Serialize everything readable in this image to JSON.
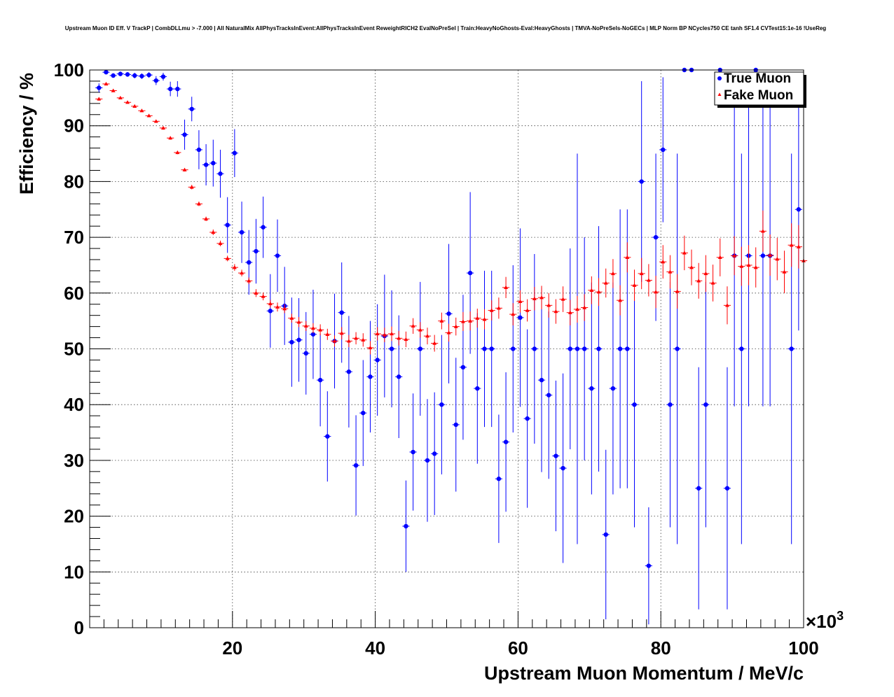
{
  "chart_data": {
    "type": "scatter",
    "title": "Upstream Muon ID Eff. V TrackP | CombDLLmu > -7.000 | All NaturalMix AllPhysTracksInEvent:AllPhysTracksInEvent ReweightRICH2 EvalNoPreSel | Train:HeavyNoGhosts-Eval:HeavyGhosts | TMVA-NoPreSels-NoGECs | MLP Norm BP NCycles750 CE tanh SF1.4 CVTest15:1e-16 !UseReg",
    "xlabel": "Upstream Muon Momentum / MeV/c",
    "ylabel": "Efficiency / %",
    "x_multiplier": "×10",
    "x_multiplier_exp": "3",
    "xlim": [
      0,
      100
    ],
    "ylim": [
      0,
      100
    ],
    "x_ticks": [
      20,
      40,
      60,
      80,
      100
    ],
    "y_ticks": [
      0,
      10,
      20,
      30,
      40,
      50,
      60,
      70,
      80,
      90,
      100
    ],
    "grid": true,
    "legend_position": "top-right",
    "series": [
      {
        "name": "True Muon",
        "color": "#0000ff",
        "marker": "circle",
        "points": [
          {
            "x": 1.3,
            "y": 96.8,
            "err": 0.8
          },
          {
            "x": 2.3,
            "y": 99.6,
            "err": 0.3
          },
          {
            "x": 3.3,
            "y": 99.0,
            "err": 0.4
          },
          {
            "x": 4.3,
            "y": 99.3,
            "err": 0.4
          },
          {
            "x": 5.3,
            "y": 99.2,
            "err": 0.4
          },
          {
            "x": 6.3,
            "y": 99.0,
            "err": 0.5
          },
          {
            "x": 7.3,
            "y": 98.9,
            "err": 0.5
          },
          {
            "x": 8.3,
            "y": 99.1,
            "err": 0.5
          },
          {
            "x": 9.3,
            "y": 98.1,
            "err": 0.8
          },
          {
            "x": 10.3,
            "y": 98.8,
            "err": 0.7
          },
          {
            "x": 11.3,
            "y": 96.6,
            "err": 1.3
          },
          {
            "x": 12.3,
            "y": 96.6,
            "err": 1.4
          },
          {
            "x": 13.3,
            "y": 88.4,
            "err": 2.7
          },
          {
            "x": 14.3,
            "y": 93.0,
            "err": 2.2
          },
          {
            "x": 15.3,
            "y": 85.7,
            "err": 3.5
          },
          {
            "x": 16.3,
            "y": 83.0,
            "err": 3.7
          },
          {
            "x": 17.3,
            "y": 83.3,
            "err": 4.2
          },
          {
            "x": 18.3,
            "y": 81.4,
            "err": 4.3
          },
          {
            "x": 19.3,
            "y": 72.2,
            "err": 5.0
          },
          {
            "x": 20.3,
            "y": 85.1,
            "err": 4.3
          },
          {
            "x": 21.3,
            "y": 70.9,
            "err": 5.5
          },
          {
            "x": 22.3,
            "y": 65.5,
            "err": 5.8
          },
          {
            "x": 23.3,
            "y": 67.5,
            "err": 5.8
          },
          {
            "x": 24.3,
            "y": 71.8,
            "err": 5.5
          },
          {
            "x": 25.3,
            "y": 56.8,
            "err": 6.6
          },
          {
            "x": 26.3,
            "y": 66.7,
            "err": 6.5
          },
          {
            "x": 27.3,
            "y": 57.7,
            "err": 7.0
          },
          {
            "x": 28.3,
            "y": 51.2,
            "err": 8.0
          },
          {
            "x": 29.3,
            "y": 51.6,
            "err": 7.5
          },
          {
            "x": 30.3,
            "y": 49.2,
            "err": 7.4
          },
          {
            "x": 31.3,
            "y": 52.6,
            "err": 8.0
          },
          {
            "x": 32.3,
            "y": 44.4,
            "err": 8.3
          },
          {
            "x": 33.3,
            "y": 34.3,
            "err": 8.1
          },
          {
            "x": 34.3,
            "y": 51.4,
            "err": 8.5
          },
          {
            "x": 35.3,
            "y": 56.5,
            "err": 9.0
          },
          {
            "x": 36.3,
            "y": 45.9,
            "err": 10.0
          },
          {
            "x": 37.3,
            "y": 29.1,
            "err": 9.0
          },
          {
            "x": 38.3,
            "y": 38.5,
            "err": 9.5
          },
          {
            "x": 39.3,
            "y": 45.0,
            "err": 10.0
          },
          {
            "x": 40.3,
            "y": 48.0,
            "err": 10.0
          },
          {
            "x": 41.3,
            "y": 52.3,
            "err": 11.0
          },
          {
            "x": 42.3,
            "y": 50.0,
            "err": 10.5
          },
          {
            "x": 43.3,
            "y": 45.0,
            "err": 11.0
          },
          {
            "x": 44.3,
            "y": 18.2,
            "err": 8.2
          },
          {
            "x": 45.3,
            "y": 31.5,
            "err": 10.5
          },
          {
            "x": 46.3,
            "y": 50.0,
            "err": 12.0
          },
          {
            "x": 47.3,
            "y": 30.0,
            "err": 11.0
          },
          {
            "x": 48.3,
            "y": 31.2,
            "err": 11.0
          },
          {
            "x": 49.3,
            "y": 40.0,
            "err": 12.5
          },
          {
            "x": 50.3,
            "y": 56.3,
            "err": 12.5
          },
          {
            "x": 51.3,
            "y": 36.4,
            "err": 12.0
          },
          {
            "x": 52.3,
            "y": 46.7,
            "err": 13.0
          },
          {
            "x": 53.3,
            "y": 63.6,
            "err": 14.5
          },
          {
            "x": 54.3,
            "y": 42.9,
            "err": 13.5
          },
          {
            "x": 55.3,
            "y": 50.0,
            "err": 14.0
          },
          {
            "x": 56.3,
            "y": 50.0,
            "err": 14.0
          },
          {
            "x": 57.3,
            "y": 26.7,
            "err": 11.5
          },
          {
            "x": 58.3,
            "y": 33.3,
            "err": 12.5
          },
          {
            "x": 59.3,
            "y": 50.0,
            "err": 15.0
          },
          {
            "x": 60.3,
            "y": 55.6,
            "err": 16.0
          },
          {
            "x": 61.3,
            "y": 37.5,
            "err": 16.0
          },
          {
            "x": 62.3,
            "y": 50.0,
            "err": 17.0
          },
          {
            "x": 63.3,
            "y": 44.4,
            "err": 16.5
          },
          {
            "x": 64.3,
            "y": 41.7,
            "err": 15.0
          },
          {
            "x": 65.3,
            "y": 30.8,
            "err": 13.5
          },
          {
            "x": 66.3,
            "y": 28.6,
            "err": 17.0
          },
          {
            "x": 67.3,
            "y": 50.0,
            "err": 18.0
          },
          {
            "x": 68.3,
            "y": 50.0,
            "err": 35.0
          },
          {
            "x": 69.3,
            "y": 50.0,
            "err": 20.0
          },
          {
            "x": 70.3,
            "y": 42.9,
            "err": 19.0
          },
          {
            "x": 71.3,
            "y": 50.0,
            "err": 22.0
          },
          {
            "x": 72.3,
            "y": 16.7,
            "err": 15.2
          },
          {
            "x": 73.3,
            "y": 42.9,
            "err": 19.0
          },
          {
            "x": 74.3,
            "y": 50.0,
            "err": 25.0
          },
          {
            "x": 75.3,
            "y": 50.0,
            "err": 25.0
          },
          {
            "x": 76.3,
            "y": 40.0,
            "err": 22.0
          },
          {
            "x": 77.3,
            "y": 80.0,
            "err": 18.0
          },
          {
            "x": 78.3,
            "y": 11.1,
            "err": 10.5
          },
          {
            "x": 79.3,
            "y": 70.0,
            "err": 15.0
          },
          {
            "x": 80.3,
            "y": 85.7,
            "err": 13.0
          },
          {
            "x": 81.3,
            "y": 40.0,
            "err": 22.0
          },
          {
            "x": 82.3,
            "y": 50.0,
            "err": 35.0
          },
          {
            "x": 83.3,
            "y": 100.0,
            "err": 0
          },
          {
            "x": 84.3,
            "y": 100.0,
            "err": 0
          },
          {
            "x": 85.3,
            "y": 25.0,
            "err": 21.7
          },
          {
            "x": 86.3,
            "y": 40.0,
            "err": 22.0
          },
          {
            "x": 88.3,
            "y": 100.0,
            "err": 0
          },
          {
            "x": 89.3,
            "y": 25.0,
            "err": 21.7
          },
          {
            "x": 90.3,
            "y": 66.7,
            "err": 27.0
          },
          {
            "x": 91.3,
            "y": 50.0,
            "err": 35.0
          },
          {
            "x": 92.3,
            "y": 66.7,
            "err": 27.0
          },
          {
            "x": 93.3,
            "y": 100.0,
            "err": 0
          },
          {
            "x": 94.3,
            "y": 66.7,
            "err": 27.0
          },
          {
            "x": 95.3,
            "y": 66.7,
            "err": 27.0
          },
          {
            "x": 98.3,
            "y": 50.0,
            "err": 35.0
          },
          {
            "x": 99.3,
            "y": 75.0,
            "err": 21.7
          }
        ]
      },
      {
        "name": "Fake Muon",
        "color": "#ff0000",
        "marker": "triangle",
        "points": [
          {
            "x": 1.3,
            "y": 94.8,
            "err": 0.3
          },
          {
            "x": 2.3,
            "y": 97.5,
            "err": 0.2
          },
          {
            "x": 3.3,
            "y": 96.3,
            "err": 0.2
          },
          {
            "x": 4.3,
            "y": 95.0,
            "err": 0.2
          },
          {
            "x": 5.3,
            "y": 94.2,
            "err": 0.2
          },
          {
            "x": 6.3,
            "y": 93.5,
            "err": 0.2
          },
          {
            "x": 7.3,
            "y": 92.7,
            "err": 0.2
          },
          {
            "x": 8.3,
            "y": 91.8,
            "err": 0.2
          },
          {
            "x": 9.3,
            "y": 90.8,
            "err": 0.2
          },
          {
            "x": 10.3,
            "y": 89.6,
            "err": 0.3
          },
          {
            "x": 11.3,
            "y": 87.8,
            "err": 0.3
          },
          {
            "x": 12.3,
            "y": 85.2,
            "err": 0.3
          },
          {
            "x": 13.3,
            "y": 82.1,
            "err": 0.3
          },
          {
            "x": 14.3,
            "y": 79.0,
            "err": 0.4
          },
          {
            "x": 15.3,
            "y": 76.0,
            "err": 0.4
          },
          {
            "x": 16.3,
            "y": 73.3,
            "err": 0.4
          },
          {
            "x": 17.3,
            "y": 70.9,
            "err": 0.5
          },
          {
            "x": 18.3,
            "y": 68.9,
            "err": 0.5
          },
          {
            "x": 19.3,
            "y": 66.2,
            "err": 0.5
          },
          {
            "x": 20.3,
            "y": 64.6,
            "err": 0.6
          },
          {
            "x": 21.3,
            "y": 63.6,
            "err": 0.6
          },
          {
            "x": 22.3,
            "y": 62.2,
            "err": 0.6
          },
          {
            "x": 23.3,
            "y": 60.0,
            "err": 0.7
          },
          {
            "x": 24.3,
            "y": 59.4,
            "err": 0.7
          },
          {
            "x": 25.3,
            "y": 58.1,
            "err": 0.7
          },
          {
            "x": 26.3,
            "y": 57.5,
            "err": 0.8
          },
          {
            "x": 27.3,
            "y": 57.2,
            "err": 0.8
          },
          {
            "x": 28.3,
            "y": 55.5,
            "err": 0.8
          },
          {
            "x": 29.3,
            "y": 54.8,
            "err": 0.9
          },
          {
            "x": 30.3,
            "y": 54.1,
            "err": 0.9
          },
          {
            "x": 31.3,
            "y": 53.7,
            "err": 0.9
          },
          {
            "x": 32.3,
            "y": 53.4,
            "err": 1.0
          },
          {
            "x": 33.3,
            "y": 52.6,
            "err": 1.0
          },
          {
            "x": 34.3,
            "y": 51.4,
            "err": 1.0
          },
          {
            "x": 35.3,
            "y": 52.8,
            "err": 1.1
          },
          {
            "x": 36.3,
            "y": 51.4,
            "err": 1.1
          },
          {
            "x": 37.3,
            "y": 51.9,
            "err": 1.1
          },
          {
            "x": 38.3,
            "y": 51.6,
            "err": 1.2
          },
          {
            "x": 39.3,
            "y": 50.2,
            "err": 1.2
          },
          {
            "x": 40.3,
            "y": 52.7,
            "err": 1.2
          },
          {
            "x": 41.3,
            "y": 52.5,
            "err": 1.3
          },
          {
            "x": 42.3,
            "y": 52.7,
            "err": 1.3
          },
          {
            "x": 43.3,
            "y": 51.9,
            "err": 1.3
          },
          {
            "x": 44.3,
            "y": 51.7,
            "err": 1.4
          },
          {
            "x": 45.3,
            "y": 54.1,
            "err": 1.4
          },
          {
            "x": 46.3,
            "y": 53.4,
            "err": 1.4
          },
          {
            "x": 47.3,
            "y": 52.3,
            "err": 1.5
          },
          {
            "x": 48.3,
            "y": 51.0,
            "err": 1.5
          },
          {
            "x": 49.3,
            "y": 55.0,
            "err": 1.5
          },
          {
            "x": 50.3,
            "y": 52.9,
            "err": 1.6
          },
          {
            "x": 51.3,
            "y": 54.0,
            "err": 1.6
          },
          {
            "x": 52.3,
            "y": 54.9,
            "err": 1.7
          },
          {
            "x": 53.3,
            "y": 55.0,
            "err": 1.7
          },
          {
            "x": 54.3,
            "y": 55.5,
            "err": 1.7
          },
          {
            "x": 55.3,
            "y": 55.3,
            "err": 1.8
          },
          {
            "x": 56.3,
            "y": 56.9,
            "err": 1.8
          },
          {
            "x": 57.3,
            "y": 57.3,
            "err": 1.9
          },
          {
            "x": 58.3,
            "y": 61.0,
            "err": 1.9
          },
          {
            "x": 59.3,
            "y": 56.2,
            "err": 2.0
          },
          {
            "x": 60.3,
            "y": 58.5,
            "err": 2.0
          },
          {
            "x": 61.3,
            "y": 56.9,
            "err": 2.0
          },
          {
            "x": 62.3,
            "y": 59.0,
            "err": 2.1
          },
          {
            "x": 63.3,
            "y": 59.2,
            "err": 2.1
          },
          {
            "x": 64.3,
            "y": 57.8,
            "err": 2.2
          },
          {
            "x": 65.3,
            "y": 56.7,
            "err": 2.2
          },
          {
            "x": 66.3,
            "y": 58.9,
            "err": 2.3
          },
          {
            "x": 67.3,
            "y": 56.5,
            "err": 2.3
          },
          {
            "x": 68.3,
            "y": 57.1,
            "err": 2.4
          },
          {
            "x": 69.3,
            "y": 57.4,
            "err": 2.4
          },
          {
            "x": 70.3,
            "y": 60.5,
            "err": 2.5
          },
          {
            "x": 71.3,
            "y": 60.2,
            "err": 2.5
          },
          {
            "x": 72.3,
            "y": 61.8,
            "err": 2.6
          },
          {
            "x": 73.3,
            "y": 63.5,
            "err": 2.6
          },
          {
            "x": 74.3,
            "y": 58.7,
            "err": 2.7
          },
          {
            "x": 75.3,
            "y": 66.4,
            "err": 2.7
          },
          {
            "x": 76.3,
            "y": 61.4,
            "err": 2.8
          },
          {
            "x": 77.3,
            "y": 63.5,
            "err": 2.8
          },
          {
            "x": 78.3,
            "y": 62.3,
            "err": 2.9
          },
          {
            "x": 79.3,
            "y": 60.2,
            "err": 2.9
          },
          {
            "x": 80.3,
            "y": 65.6,
            "err": 3.0
          },
          {
            "x": 81.3,
            "y": 63.8,
            "err": 3.0
          },
          {
            "x": 82.3,
            "y": 60.3,
            "err": 3.1
          },
          {
            "x": 83.3,
            "y": 67.2,
            "err": 3.1
          },
          {
            "x": 84.3,
            "y": 64.6,
            "err": 3.2
          },
          {
            "x": 85.3,
            "y": 62.2,
            "err": 3.2
          },
          {
            "x": 86.3,
            "y": 63.5,
            "err": 3.3
          },
          {
            "x": 87.3,
            "y": 61.8,
            "err": 3.3
          },
          {
            "x": 88.3,
            "y": 66.4,
            "err": 3.4
          },
          {
            "x": 89.3,
            "y": 57.8,
            "err": 3.4
          },
          {
            "x": 90.3,
            "y": 66.7,
            "err": 3.5
          },
          {
            "x": 91.3,
            "y": 64.8,
            "err": 3.5
          },
          {
            "x": 92.3,
            "y": 65.0,
            "err": 3.6
          },
          {
            "x": 93.3,
            "y": 64.6,
            "err": 3.6
          },
          {
            "x": 94.3,
            "y": 71.1,
            "err": 3.7
          },
          {
            "x": 95.3,
            "y": 66.8,
            "err": 3.7
          },
          {
            "x": 96.3,
            "y": 66.1,
            "err": 3.8
          },
          {
            "x": 97.3,
            "y": 63.8,
            "err": 3.8
          },
          {
            "x": 98.3,
            "y": 68.6,
            "err": 3.9
          },
          {
            "x": 99.3,
            "y": 68.3,
            "err": 3.9
          },
          {
            "x": 100.0,
            "y": 65.8,
            "err": 4.0
          }
        ]
      }
    ]
  }
}
